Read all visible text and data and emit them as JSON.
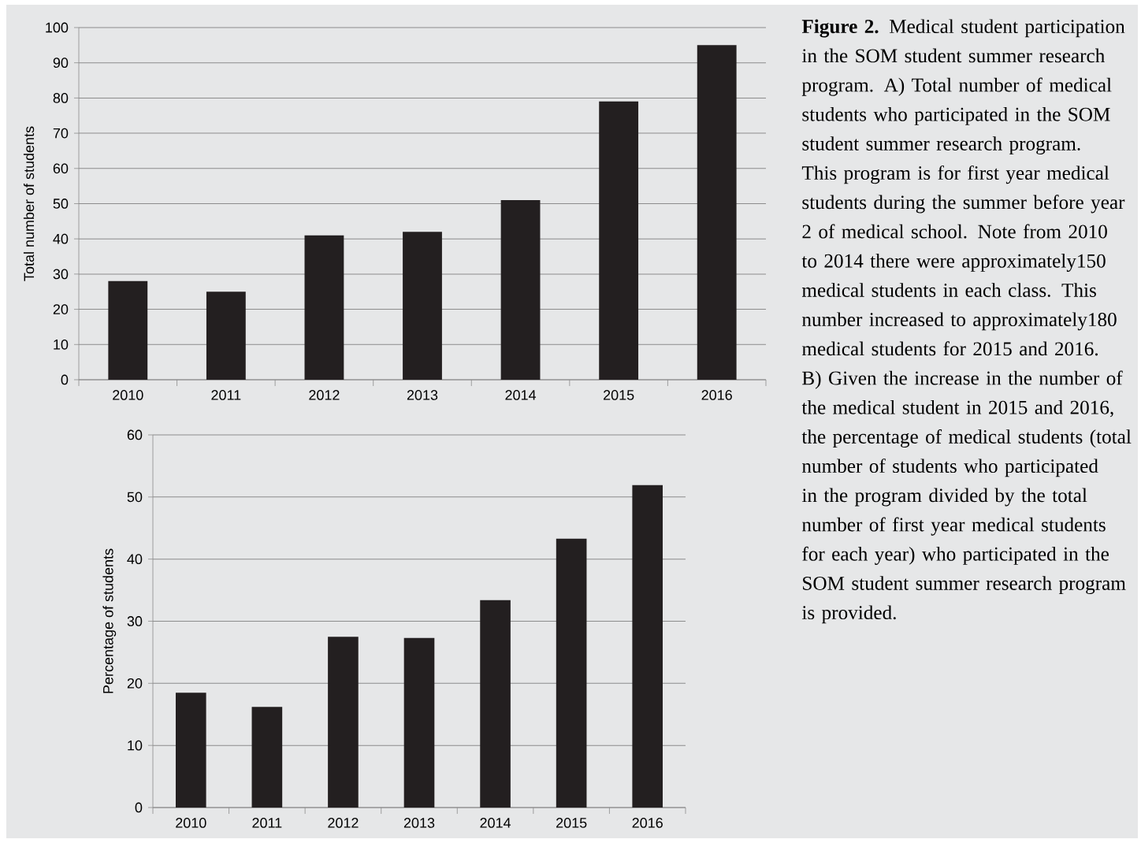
{
  "chart_data": [
    {
      "type": "bar",
      "ylabel": "Total number of students",
      "categories": [
        "2010",
        "2011",
        "2012",
        "2013",
        "2014",
        "2015",
        "2016"
      ],
      "values": [
        28,
        25,
        41,
        42,
        51,
        79,
        95
      ],
      "color": "#231f20",
      "ylim": [
        0,
        100
      ],
      "yticks": [
        0,
        10,
        20,
        30,
        40,
        50,
        60,
        70,
        80,
        90,
        100
      ],
      "grid": "y"
    },
    {
      "type": "bar",
      "ylabel": "Percentage of students",
      "categories": [
        "2010",
        "2011",
        "2012",
        "2013",
        "2014",
        "2015",
        "2016"
      ],
      "values": [
        18.5,
        16.2,
        27.5,
        27.3,
        33.4,
        43.3,
        51.9
      ],
      "color": "#231f20",
      "ylim": [
        0,
        60
      ],
      "yticks": [
        0,
        10,
        20,
        30,
        40,
        50,
        60
      ],
      "grid": "y"
    },
    {
      "type": "other",
      "annotations": [
        "**Figure 2.** Medical student participation in the SOM student summer research program. A) Total number of medical students who participated in the SOM student summer research program. This program is for first year medical students during the summer before year 2 of medical school. Note from 2010 to 2014 there were approximately150 medical students in each class. This number increased to approximately180 medical students for 2015 and 2016.",
        "B) Given the increase in the number of the medical student in 2015 and 2016, the percentage of medical students (total number of students who participated in the program divided by the total number of first year medical students for each year) who participated in the SOM student summer research program is provided."
      ]
    }
  ]
}
